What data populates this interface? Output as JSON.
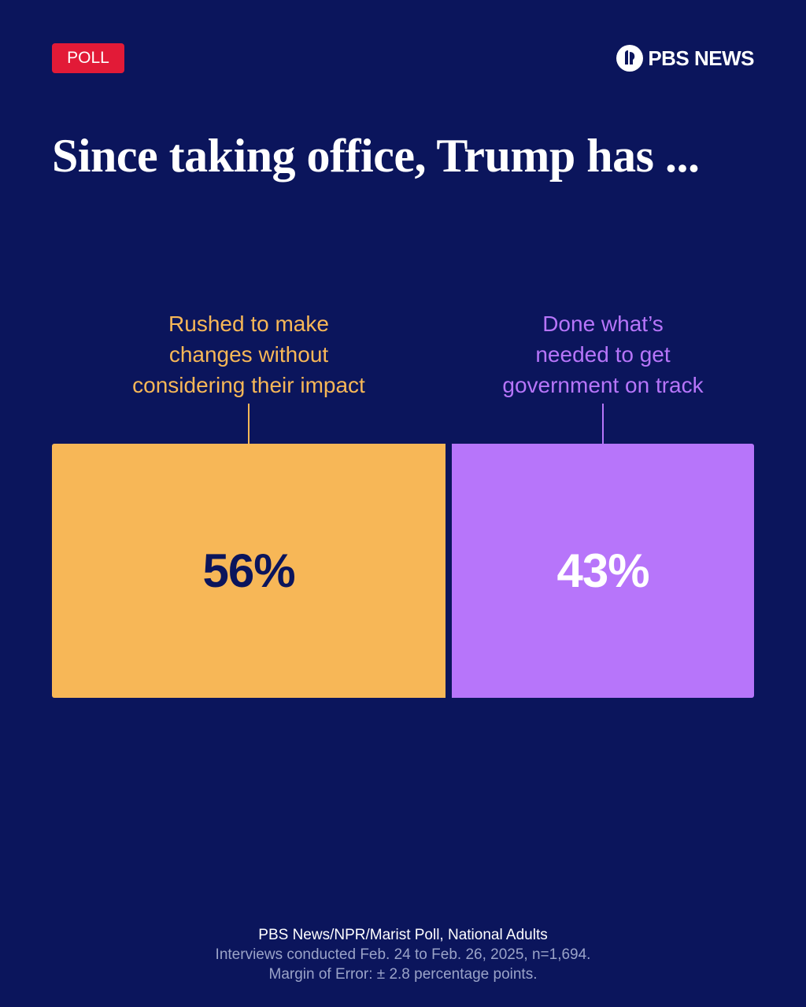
{
  "header": {
    "badge": "POLL",
    "logo_text": "PBS NEWS",
    "logo_icon": "pbs-head-icon"
  },
  "title": "Since taking office, Trump has ...",
  "chart_data": {
    "type": "bar",
    "orientation": "horizontal-stacked",
    "categories": [
      "Rushed to make\nchanges without\nconsidering their impact",
      "Done what’s\nneeded to get\ngovernment on track"
    ],
    "values": [
      56,
      43
    ],
    "value_labels": [
      "56%",
      "43%"
    ],
    "colors": [
      "#f7b757",
      "#b775fa"
    ],
    "label_colors": [
      "#f7b757",
      "#b775fa"
    ],
    "value_text_colors": [
      "#0b155c",
      "#ffffff"
    ]
  },
  "footer": {
    "source": "PBS News/NPR/Marist Poll, National Adults",
    "dates": "Interviews conducted Feb. 24 to Feb. 26, 2025, n=1,694.",
    "margin_of_error": "Margin of Error: ± 2.8 percentage points."
  },
  "colors": {
    "background": "#0b155c",
    "badge": "#e21a37"
  }
}
